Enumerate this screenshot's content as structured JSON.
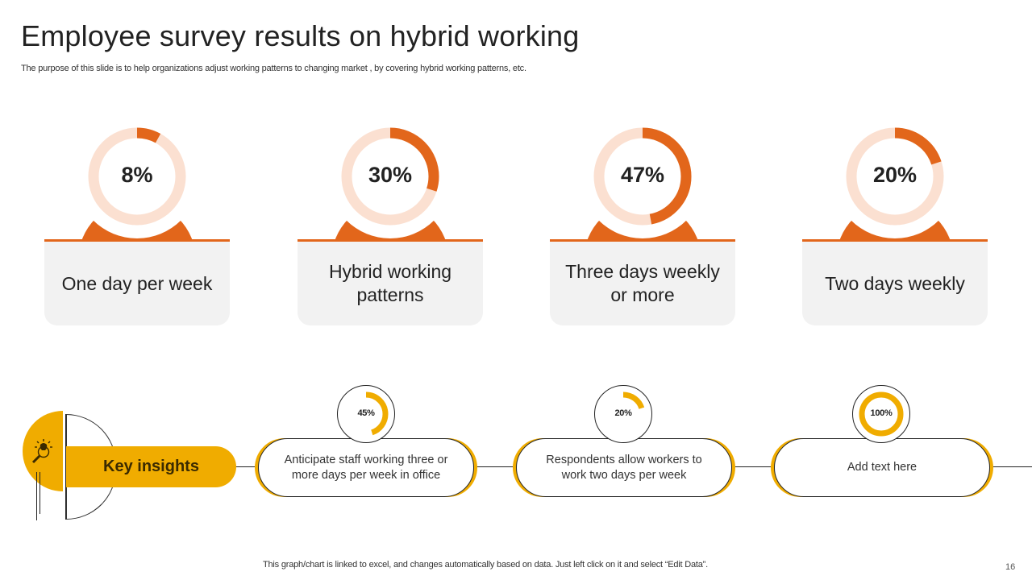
{
  "slide": {
    "title": "Employee survey results on hybrid working",
    "subtitle": "The purpose of this slide is to help organizations adjust working patterns to changing market , by covering  hybrid working patterns, etc.",
    "footnote": "This graph/chart is linked to excel, and changes automatically based on data. Just left click on it and select “Edit Data”.",
    "page_number": "16"
  },
  "colors": {
    "accent_orange": "#e2661b",
    "donut_track": "#fbe0d1",
    "accent_yellow": "#f0ac00",
    "label_box_bg": "#f2f2f2"
  },
  "cards": [
    {
      "value": 8,
      "label_pct": "8%",
      "label": "One day per week"
    },
    {
      "value": 30,
      "label_pct": "30%",
      "label": "Hybrid working patterns"
    },
    {
      "value": 47,
      "label_pct": "47%",
      "label": "Three days weekly or more"
    },
    {
      "value": 20,
      "label_pct": "20%",
      "label": "Two days weekly"
    }
  ],
  "key_insights": {
    "title": "Key insights",
    "icon": "lightbulb-magnifier-icon",
    "items": [
      {
        "value": 45,
        "label_pct": "45%",
        "text": "Anticipate staff working three or more days per week in office"
      },
      {
        "value": 20,
        "label_pct": "20%",
        "text": "Respondents allow workers to work two days per week"
      },
      {
        "value": 100,
        "label_pct": "100%",
        "text": "Add text here"
      }
    ]
  },
  "chart_data": [
    {
      "type": "pie",
      "title": "Employee survey results on hybrid working",
      "subtype": "donut",
      "categories": [
        "One day per week",
        "Hybrid working patterns",
        "Three days weekly or more",
        "Two days weekly"
      ],
      "values": [
        8,
        30,
        47,
        20
      ],
      "unit": "%",
      "legend": "none"
    },
    {
      "type": "pie",
      "title": "Key insights",
      "subtype": "donut",
      "categories": [
        "Anticipate staff working three or more days per week in office",
        "Respondents allow workers to work two days per week",
        "Add text here"
      ],
      "values": [
        45,
        20,
        100
      ],
      "unit": "%",
      "legend": "none"
    }
  ]
}
